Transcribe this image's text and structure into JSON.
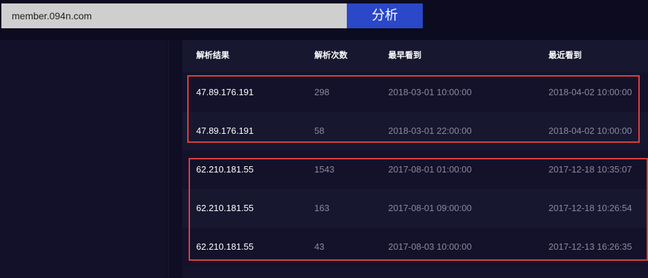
{
  "search": {
    "value": "member.094n.com",
    "button": "分析"
  },
  "table": {
    "headers": [
      "解析结果",
      "解析次数",
      "最早看到",
      "最近看到"
    ],
    "rows": [
      [
        "47.89.176.191",
        "298",
        "2018-03-01 10:00:00",
        "2018-04-02 10:00:00"
      ],
      [
        "47.89.176.191",
        "58",
        "2018-03-01 22:00:00",
        "2018-04-02 10:00:00"
      ],
      [
        "62.210.181.55",
        "1543",
        "2017-08-01 01:00:00",
        "2017-12-18 10:35:07"
      ],
      [
        "62.210.181.55",
        "163",
        "2017-08-01 09:00:00",
        "2017-12-18 10:26:54"
      ],
      [
        "62.210.181.55",
        "43",
        "2017-08-03 10:00:00",
        "2017-12-13 16:26:35"
      ]
    ]
  },
  "highlight_color": "#e04040"
}
